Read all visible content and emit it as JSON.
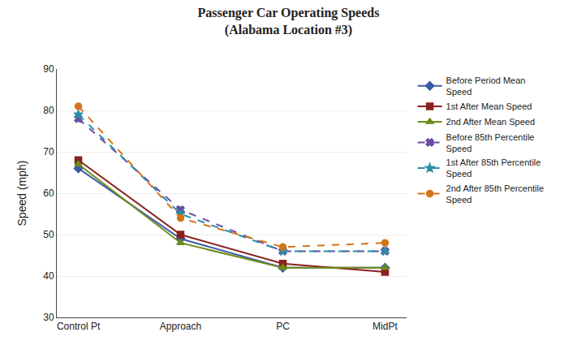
{
  "chart_data": {
    "type": "line",
    "title": "Passenger Car Operating Speeds\n(Alabama Location #3)",
    "categories": [
      "Control Pt",
      "Approach",
      "PC",
      "MidPt"
    ],
    "ylabel": "Speed (mph)",
    "ylim": [
      30,
      90
    ],
    "yticks": [
      30,
      40,
      50,
      60,
      70,
      80,
      90
    ],
    "grid": true,
    "legend": "right",
    "series": [
      {
        "name": "Before Period Mean\nSpeed",
        "color": "#3C5AA6",
        "marker": "diamond",
        "line_style": "solid",
        "values": [
          66,
          49,
          42,
          42
        ]
      },
      {
        "name": "1st After Mean Speed",
        "color": "#8B2020",
        "marker": "square",
        "line_style": "solid",
        "values": [
          68,
          50,
          43,
          41
        ]
      },
      {
        "name": "2nd After Mean Speed",
        "color": "#6E8B1A",
        "marker": "triangle-up",
        "line_style": "solid",
        "values": [
          67,
          48,
          42,
          42
        ]
      },
      {
        "name": "Before 85th Percentile\nSpeed",
        "color": "#6A4FA0",
        "marker": "x",
        "line_style": "dashed",
        "values": [
          78,
          56,
          46,
          46
        ]
      },
      {
        "name": "1st After 85th Percentile\nSpeed",
        "color": "#2B8CA8",
        "marker": "star",
        "line_style": "dashed",
        "values": [
          79,
          55,
          46,
          46
        ]
      },
      {
        "name": "2nd After 85th Percentile\nSpeed",
        "color": "#D4751A",
        "marker": "circle",
        "line_style": "dashed",
        "values": [
          81,
          54,
          47,
          48
        ]
      }
    ]
  }
}
